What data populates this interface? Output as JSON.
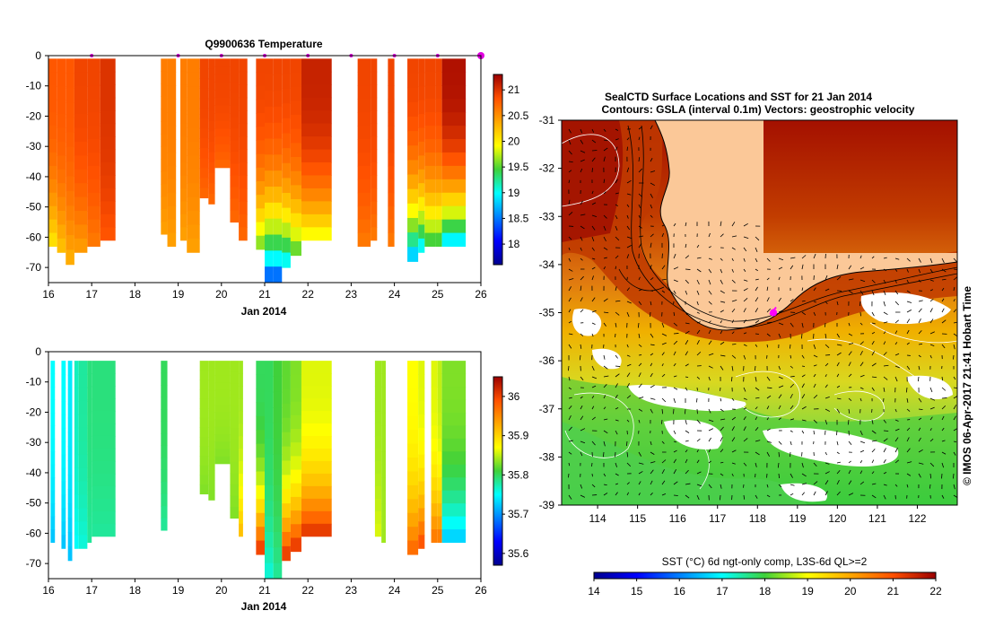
{
  "chart_data": [
    {
      "type": "heatmap",
      "title": "Q9900636  Temperature",
      "xlabel": "Jan 2014",
      "ylabel": "",
      "xlim": [
        16,
        26
      ],
      "ylim": [
        -75,
        0
      ],
      "x_ticks": [
        "16",
        "17",
        "18",
        "19",
        "20",
        "21",
        "22",
        "23",
        "24",
        "25",
        "26"
      ],
      "y_ticks": [
        "0",
        "-10",
        "-20",
        "-30",
        "-40",
        "-50",
        "-60",
        "-70"
      ],
      "colorbar": {
        "min": 17.6,
        "max": 21.3,
        "ticks": [
          "21",
          "20.5",
          "20",
          "19.5",
          "19",
          "18.5",
          "18"
        ]
      },
      "profile_markers_day": [
        17,
        19,
        20,
        21,
        22,
        23,
        24,
        25,
        26
      ],
      "profiles": [
        {
          "x0": 16.0,
          "x1": 16.2,
          "depth": -63,
          "surface": 20.8,
          "bottom": 20.0
        },
        {
          "x0": 16.2,
          "x1": 16.4,
          "depth": -65,
          "surface": 20.8,
          "bottom": 20.2
        },
        {
          "x0": 16.4,
          "x1": 16.6,
          "depth": -69,
          "surface": 20.8,
          "bottom": 20.3
        },
        {
          "x0": 16.6,
          "x1": 16.9,
          "depth": -65,
          "surface": 20.9,
          "bottom": 20.4
        },
        {
          "x0": 16.9,
          "x1": 17.2,
          "depth": -63,
          "surface": 20.9,
          "bottom": 20.6
        },
        {
          "x0": 17.2,
          "x1": 17.55,
          "depth": -61,
          "surface": 21.0,
          "bottom": 20.8
        },
        {
          "x0": 18.6,
          "x1": 18.75,
          "depth": -59,
          "surface": 20.6,
          "bottom": 20.4
        },
        {
          "x0": 18.75,
          "x1": 18.95,
          "depth": -63,
          "surface": 20.6,
          "bottom": 20.4
        },
        {
          "x0": 19.05,
          "x1": 19.2,
          "depth": -61,
          "surface": 20.6,
          "bottom": 20.4
        },
        {
          "x0": 19.2,
          "x1": 19.5,
          "depth": -65,
          "surface": 20.6,
          "bottom": 20.4
        },
        {
          "x0": 19.5,
          "x1": 19.7,
          "depth": -47,
          "surface": 20.9,
          "bottom": 20.7
        },
        {
          "x0": 19.7,
          "x1": 19.85,
          "depth": -49,
          "surface": 20.9,
          "bottom": 20.7
        },
        {
          "x0": 19.85,
          "x1": 20.2,
          "depth": -37,
          "surface": 20.9,
          "bottom": 20.7
        },
        {
          "x0": 20.2,
          "x1": 20.4,
          "depth": -55,
          "surface": 20.9,
          "bottom": 20.7
        },
        {
          "x0": 20.4,
          "x1": 20.6,
          "depth": -61,
          "surface": 20.9,
          "bottom": 20.7
        },
        {
          "x0": 20.8,
          "x1": 21.0,
          "depth": -64,
          "surface": 20.9,
          "bottom": 19.5
        },
        {
          "x0": 21.0,
          "x1": 21.2,
          "depth": -75,
          "surface": 20.9,
          "bottom": 18.2
        },
        {
          "x0": 21.2,
          "x1": 21.4,
          "depth": -75,
          "surface": 20.9,
          "bottom": 18.2
        },
        {
          "x0": 21.4,
          "x1": 21.6,
          "depth": -70,
          "surface": 20.9,
          "bottom": 18.8
        },
        {
          "x0": 21.6,
          "x1": 21.85,
          "depth": -66,
          "surface": 20.9,
          "bottom": 19.4
        },
        {
          "x0": 21.85,
          "x1": 22.55,
          "depth": -61,
          "surface": 21.1,
          "bottom": 19.8
        },
        {
          "x0": 23.15,
          "x1": 23.45,
          "depth": -63,
          "surface": 20.9,
          "bottom": 20.6
        },
        {
          "x0": 23.45,
          "x1": 23.6,
          "depth": -61,
          "surface": 20.9,
          "bottom": 20.6
        },
        {
          "x0": 23.85,
          "x1": 24.0,
          "depth": -63,
          "surface": 20.9,
          "bottom": 20.6
        },
        {
          "x0": 24.3,
          "x1": 24.55,
          "depth": -68,
          "surface": 20.9,
          "bottom": 18.6
        },
        {
          "x0": 24.55,
          "x1": 24.7,
          "depth": -65,
          "surface": 20.9,
          "bottom": 18.8
        },
        {
          "x0": 24.7,
          "x1": 24.95,
          "depth": -63,
          "surface": 20.9,
          "bottom": 19.3
        },
        {
          "x0": 24.95,
          "x1": 25.1,
          "depth": -63,
          "surface": 20.9,
          "bottom": 19.3
        },
        {
          "x0": 25.1,
          "x1": 25.65,
          "depth": -63,
          "surface": 21.2,
          "bottom": 18.7
        }
      ]
    },
    {
      "type": "heatmap",
      "title": "",
      "xlabel": "Jan 2014",
      "ylabel": "",
      "xlim": [
        16,
        26
      ],
      "ylim": [
        -75,
        0
      ],
      "x_ticks": [
        "16",
        "17",
        "18",
        "19",
        "20",
        "21",
        "22",
        "23",
        "24",
        "25",
        "26"
      ],
      "y_ticks": [
        "0",
        "-10",
        "-20",
        "-30",
        "-40",
        "-50",
        "-60",
        "-70"
      ],
      "colorbar": {
        "min": 35.57,
        "max": 36.05,
        "ticks": [
          "36",
          "35.9",
          "35.8",
          "35.7",
          "35.6"
        ]
      },
      "profiles": [
        {
          "x0": 16.05,
          "x1": 16.15,
          "depth": -63,
          "surface": 35.75,
          "bottom": 35.72
        },
        {
          "x0": 16.3,
          "x1": 16.4,
          "depth": -65,
          "surface": 35.75,
          "bottom": 35.72
        },
        {
          "x0": 16.45,
          "x1": 16.55,
          "depth": -69,
          "surface": 35.74,
          "bottom": 35.72
        },
        {
          "x0": 16.6,
          "x1": 16.7,
          "depth": -65,
          "surface": 35.77,
          "bottom": 35.75
        },
        {
          "x0": 16.7,
          "x1": 16.9,
          "depth": -65,
          "surface": 35.78,
          "bottom": 35.76
        },
        {
          "x0": 16.9,
          "x1": 17.0,
          "depth": -63,
          "surface": 35.79,
          "bottom": 35.78
        },
        {
          "x0": 17.0,
          "x1": 17.55,
          "depth": -61,
          "surface": 35.79,
          "bottom": 35.78
        },
        {
          "x0": 18.6,
          "x1": 18.75,
          "depth": -59,
          "surface": 35.8,
          "bottom": 35.78
        },
        {
          "x0": 19.5,
          "x1": 19.7,
          "depth": -47,
          "surface": 35.84,
          "bottom": 35.83
        },
        {
          "x0": 19.7,
          "x1": 19.85,
          "depth": -49,
          "surface": 35.84,
          "bottom": 35.83
        },
        {
          "x0": 19.85,
          "x1": 20.2,
          "depth": -37,
          "surface": 35.84,
          "bottom": 35.83
        },
        {
          "x0": 20.2,
          "x1": 20.4,
          "depth": -55,
          "surface": 35.84,
          "bottom": 35.83
        },
        {
          "x0": 20.4,
          "x1": 20.5,
          "depth": -61,
          "surface": 35.84,
          "bottom": 35.92
        },
        {
          "x0": 20.8,
          "x1": 21.0,
          "depth": -67,
          "surface": 35.8,
          "bottom": 36.02
        },
        {
          "x0": 21.0,
          "x1": 21.2,
          "depth": -75,
          "surface": 35.8,
          "bottom": 35.76
        },
        {
          "x0": 21.2,
          "x1": 21.4,
          "depth": -75,
          "surface": 35.81,
          "bottom": 35.78
        },
        {
          "x0": 21.4,
          "x1": 21.6,
          "depth": -69,
          "surface": 35.82,
          "bottom": 36.02
        },
        {
          "x0": 21.6,
          "x1": 21.85,
          "depth": -66,
          "surface": 35.83,
          "bottom": 36.02
        },
        {
          "x0": 21.85,
          "x1": 22.55,
          "depth": -61,
          "surface": 35.86,
          "bottom": 36.02
        },
        {
          "x0": 23.55,
          "x1": 23.7,
          "depth": -61,
          "surface": 35.84,
          "bottom": 35.86
        },
        {
          "x0": 23.7,
          "x1": 23.8,
          "depth": -63,
          "surface": 35.84,
          "bottom": 35.84
        },
        {
          "x0": 24.3,
          "x1": 24.55,
          "depth": -67,
          "surface": 35.87,
          "bottom": 35.98
        },
        {
          "x0": 24.55,
          "x1": 24.7,
          "depth": -65,
          "surface": 35.86,
          "bottom": 36.0
        },
        {
          "x0": 24.85,
          "x1": 25.0,
          "depth": -63,
          "surface": 35.86,
          "bottom": 35.97
        },
        {
          "x0": 25.0,
          "x1": 25.1,
          "depth": -63,
          "surface": 35.85,
          "bottom": 35.97
        },
        {
          "x0": 25.1,
          "x1": 25.65,
          "depth": -63,
          "surface": 35.83,
          "bottom": 35.72
        }
      ]
    },
    {
      "type": "heatmap",
      "title": "SealCTD Surface Locations and SST for 21 Jan 2014",
      "subtitle": "Contours: GSLA (interval 0.1m) Vectors: geostrophic velocity",
      "xlabel": "",
      "ylabel": "",
      "xlim": [
        113.1,
        123.0
      ],
      "ylim": [
        -39,
        -31
      ],
      "x_ticks": [
        "114",
        "115",
        "116",
        "117",
        "118",
        "119",
        "120",
        "121",
        "122"
      ],
      "y_ticks": [
        "-31",
        "-32",
        "-33",
        "-34",
        "-35",
        "-36",
        "-37",
        "-38",
        "-39"
      ],
      "colorbar": {
        "label": "SST (°C) 6d ngt-only comp, L3S-6d QL>=2",
        "min": 14,
        "max": 22,
        "ticks": [
          "14",
          "15",
          "16",
          "17",
          "18",
          "19",
          "20",
          "21",
          "22"
        ]
      },
      "seal_location": {
        "lon": 118.4,
        "lat": -35.0
      },
      "side_label": "© IMOS 06-Apr-2017 21:41 Hobart Time"
    }
  ]
}
